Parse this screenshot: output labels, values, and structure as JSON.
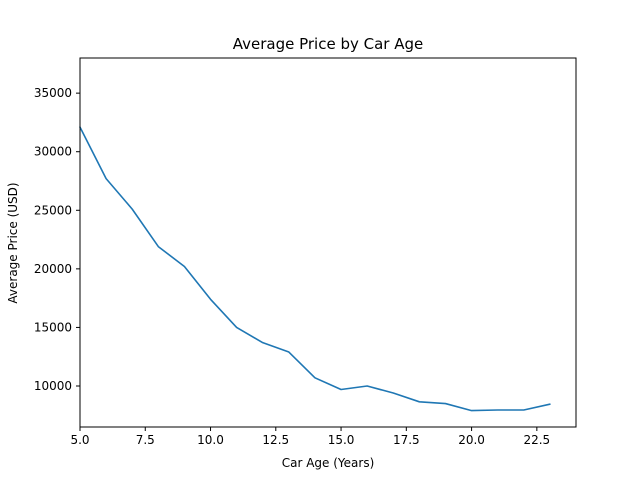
{
  "chart_data": {
    "type": "line",
    "title": "Average Price by Car Age",
    "xlabel": "Car Age (Years)",
    "ylabel": "Average Price (USD)",
    "xlim": [
      5,
      24
    ],
    "ylim": [
      6500,
      38000
    ],
    "xticks": [
      5.0,
      7.5,
      10.0,
      12.5,
      15.0,
      17.5,
      20.0,
      22.5
    ],
    "xtick_labels": [
      "5.0",
      "7.5",
      "10.0",
      "12.5",
      "15.0",
      "17.5",
      "20.0",
      "22.5"
    ],
    "yticks": [
      10000,
      15000,
      20000,
      25000,
      30000,
      35000
    ],
    "ytick_labels": [
      "10000",
      "15000",
      "20000",
      "25000",
      "30000",
      "35000"
    ],
    "grid": false,
    "series": [
      {
        "color": "#1f77b4",
        "x": [
          5,
          6,
          7,
          8,
          9,
          10,
          11,
          12,
          13,
          14,
          15,
          16,
          17,
          18,
          19,
          20,
          21,
          22,
          23
        ],
        "y": [
          32100,
          27700,
          25100,
          21900,
          20200,
          17400,
          15000,
          13700,
          12900,
          10700,
          9700,
          10000,
          9400,
          8650,
          8500,
          7900,
          7950,
          7950,
          8450
        ]
      }
    ]
  }
}
